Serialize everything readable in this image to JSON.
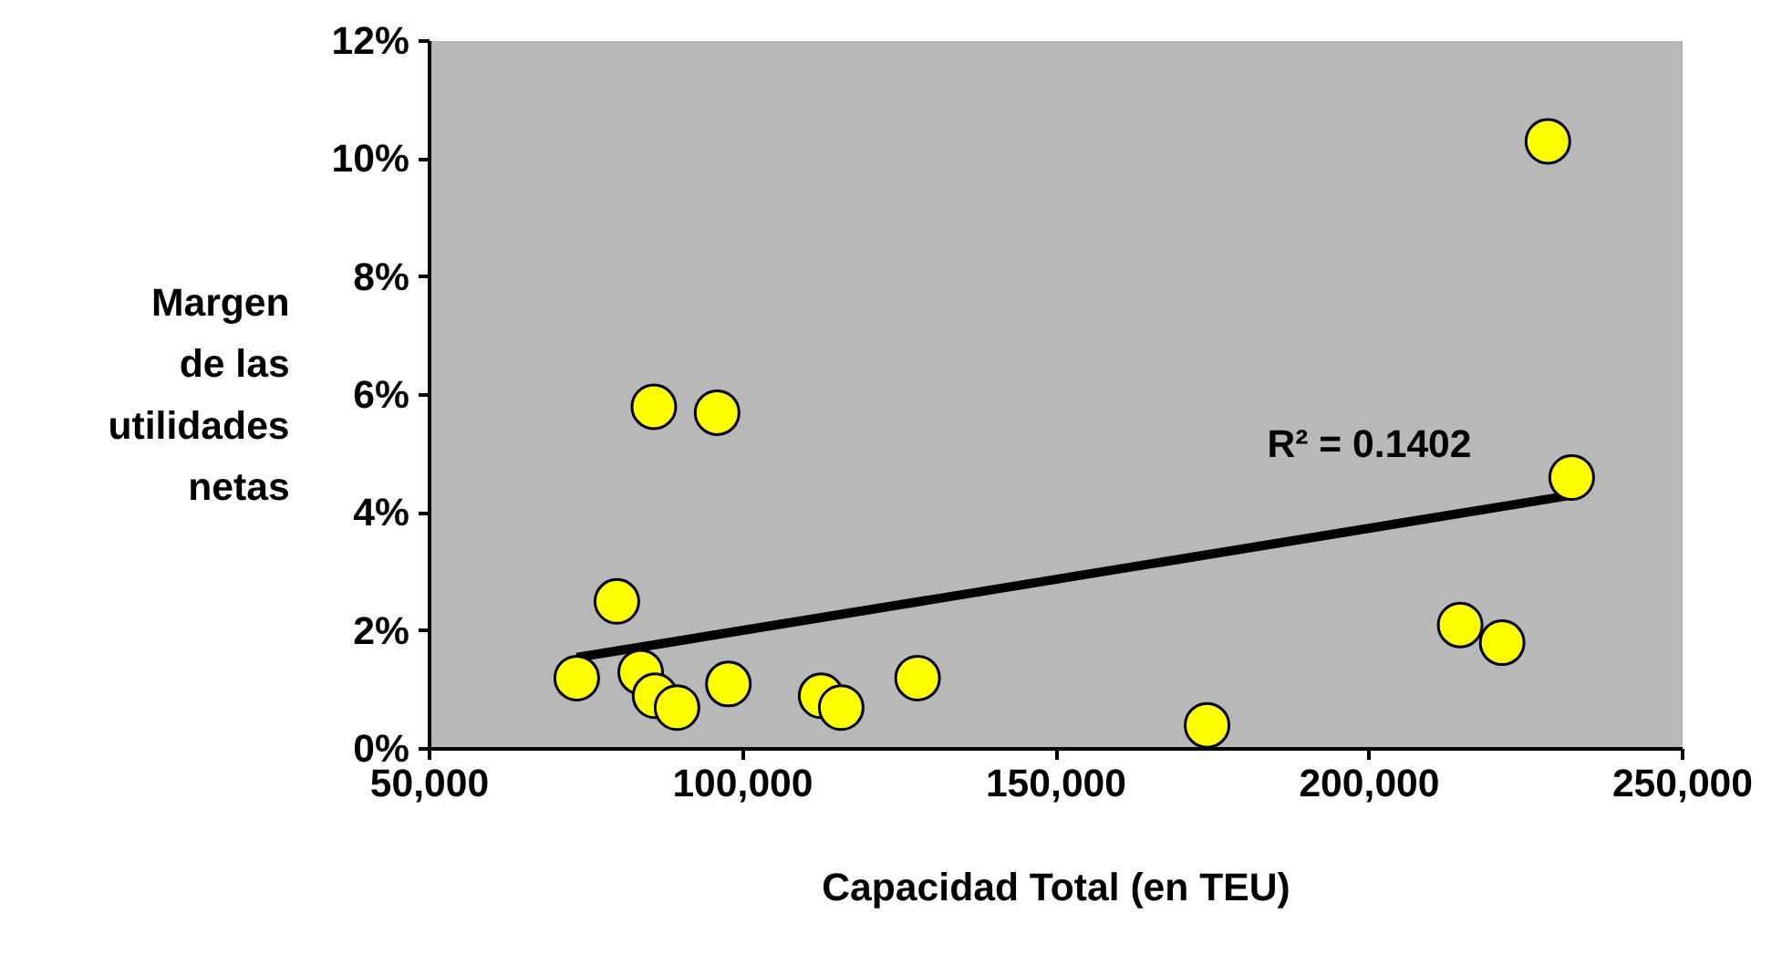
{
  "chart_data": {
    "type": "scatter",
    "xlabel": "Capacidad Total (en TEU)",
    "ylabel": "Margen\nde las\nutilidades\nnetas",
    "xlim": [
      50000,
      250000
    ],
    "xticks": [
      {
        "value": 50000,
        "label": "50,000"
      },
      {
        "value": 100000,
        "label": "100,000"
      },
      {
        "value": 150000,
        "label": "150,000"
      },
      {
        "value": 200000,
        "label": "200,000"
      },
      {
        "value": 250000,
        "label": "250,000"
      }
    ],
    "ylim": [
      0,
      12
    ],
    "yticks": [
      {
        "value": 0,
        "label": "0%"
      },
      {
        "value": 2,
        "label": "2%"
      },
      {
        "value": 4,
        "label": "4%"
      },
      {
        "value": 6,
        "label": "6%"
      },
      {
        "value": 8,
        "label": "8%"
      },
      {
        "value": 10,
        "label": "10%"
      },
      {
        "value": 12,
        "label": "12%"
      }
    ],
    "series": [
      {
        "color": "#ffff00",
        "marker": "circle",
        "x": [
          73500,
          79900,
          83700,
          86000,
          85800,
          95900,
          89500,
          97700,
          112500,
          115700,
          127900,
          174100,
          214500,
          221200,
          228500,
          232300
        ],
        "values": [
          1.2,
          2.5,
          1.3,
          0.9,
          5.8,
          5.7,
          0.7,
          1.1,
          0.9,
          0.7,
          1.2,
          0.4,
          2.1,
          1.8,
          10.3,
          4.6
        ]
      },
      {
        "type": "line",
        "color": "#000000",
        "x": [
          73500,
          232300
        ],
        "values": [
          1.55,
          4.3
        ]
      }
    ],
    "annotations": [
      "R² = 0.1402"
    ],
    "grid": false
  }
}
